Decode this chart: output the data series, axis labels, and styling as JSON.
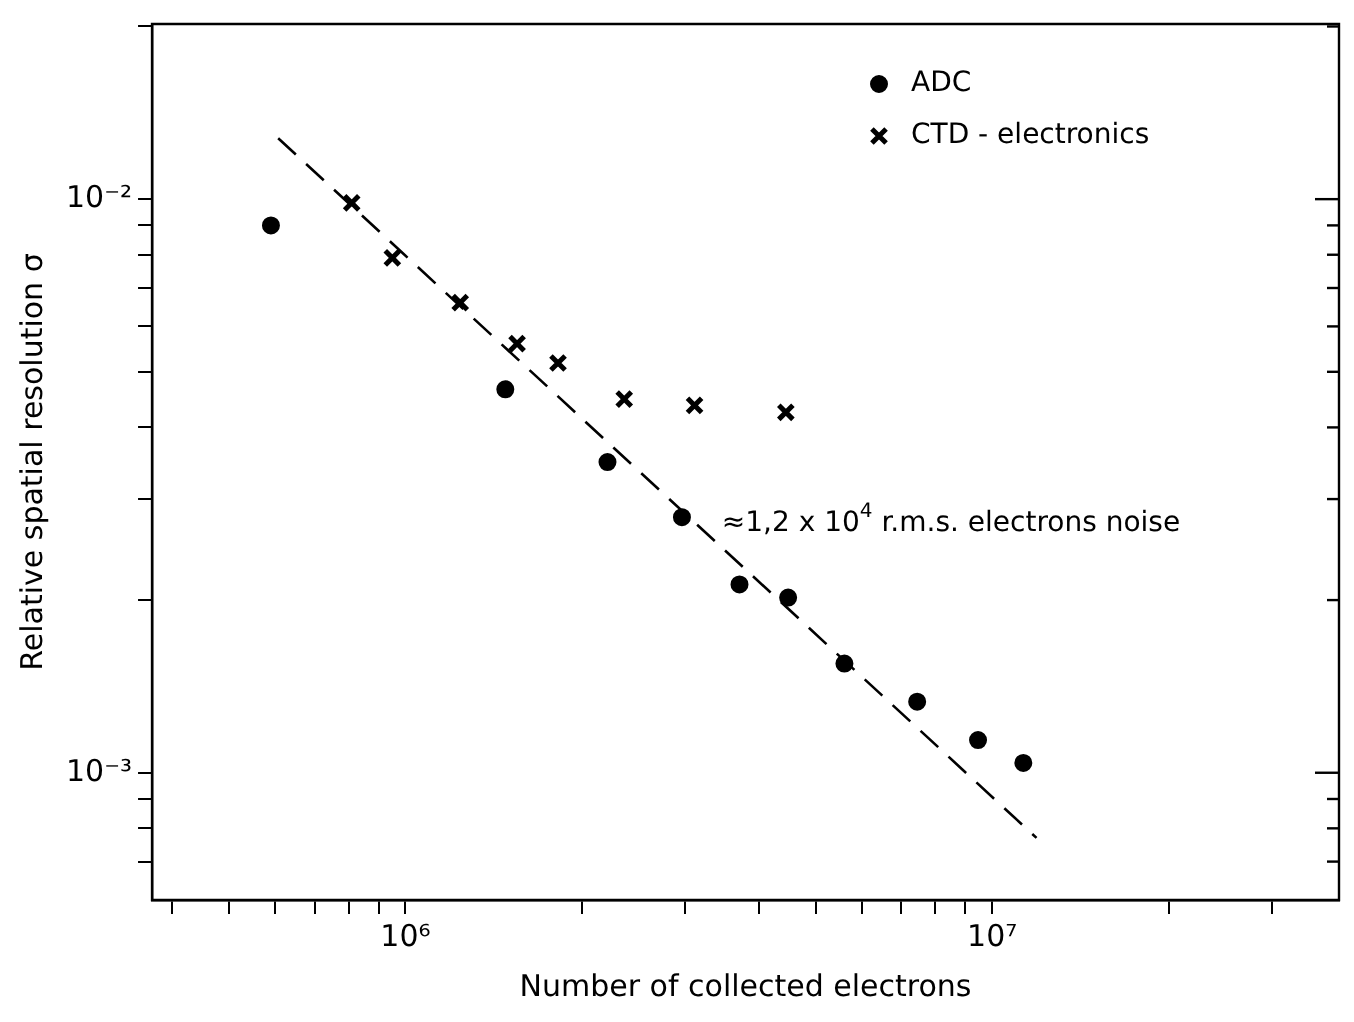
{
  "chart_data": {
    "type": "scatter",
    "xlabel": "Number of collected electrons",
    "ylabel": "Relative spatial resolution σ",
    "log": "xy",
    "grid": false,
    "legend": "top right",
    "xlim": [
      370000,
      39000000
    ],
    "ylim": [
      0.00061,
      0.0202
    ],
    "xticks": [
      {
        "value": 400000,
        "label": null
      },
      {
        "value": 500000,
        "label": null
      },
      {
        "value": 600000,
        "label": null
      },
      {
        "value": 700000,
        "label": null
      },
      {
        "value": 800000,
        "label": null
      },
      {
        "value": 900000,
        "label": null
      },
      {
        "value": 1000000,
        "label": "10⁶"
      },
      {
        "value": 2000000,
        "label": null
      },
      {
        "value": 3000000,
        "label": null
      },
      {
        "value": 4000000,
        "label": null
      },
      {
        "value": 5000000,
        "label": null
      },
      {
        "value": 6000000,
        "label": null
      },
      {
        "value": 7000000,
        "label": null
      },
      {
        "value": 8000000,
        "label": null
      },
      {
        "value": 9000000,
        "label": null
      },
      {
        "value": 10000000,
        "label": "10⁷"
      },
      {
        "value": 20000000,
        "label": null
      },
      {
        "value": 30000000,
        "label": null
      }
    ],
    "yticks": [
      {
        "value": 0.0007,
        "label": null
      },
      {
        "value": 0.0008,
        "label": null
      },
      {
        "value": 0.0009,
        "label": null
      },
      {
        "value": 0.001,
        "label": "10⁻³"
      },
      {
        "value": 0.002,
        "label": null
      },
      {
        "value": 0.003,
        "label": null
      },
      {
        "value": 0.004,
        "label": null
      },
      {
        "value": 0.005,
        "label": null
      },
      {
        "value": 0.006,
        "label": null
      },
      {
        "value": 0.007,
        "label": null
      },
      {
        "value": 0.008,
        "label": null
      },
      {
        "value": 0.009,
        "label": null
      },
      {
        "value": 0.01,
        "label": "10⁻²"
      },
      {
        "value": 0.02,
        "label": null
      }
    ],
    "series": [
      {
        "name": "ADC",
        "color": "#000000",
        "marker": "circle",
        "x": [
          590000,
          1480000,
          2210000,
          2960000,
          3710000,
          4490000,
          5600000,
          7450000,
          9460000,
          11300000
        ],
        "values": [
          0.009,
          0.00466,
          0.00348,
          0.00279,
          0.00213,
          0.00202,
          0.00155,
          0.00133,
          0.00114,
          0.00104
        ]
      },
      {
        "name": "CTD - electronics",
        "color": "#000000",
        "marker": "cross",
        "x": [
          810000,
          950000,
          1240000,
          1550000,
          1820000,
          2360000,
          3110000,
          4450000
        ],
        "values": [
          0.00985,
          0.0079,
          0.0066,
          0.0056,
          0.00518,
          0.00448,
          0.00437,
          0.00425
        ]
      },
      {
        "type": "line",
        "color": "#000000",
        "line_style": "dashed",
        "marker": "none",
        "x": [
          607000,
          11900000
        ],
        "values": [
          0.01277,
          0.00077
        ]
      }
    ],
    "annotations": [
      "≈1,2 x 10$^{4}$ r.m.s. electrons noise"
    ]
  }
}
